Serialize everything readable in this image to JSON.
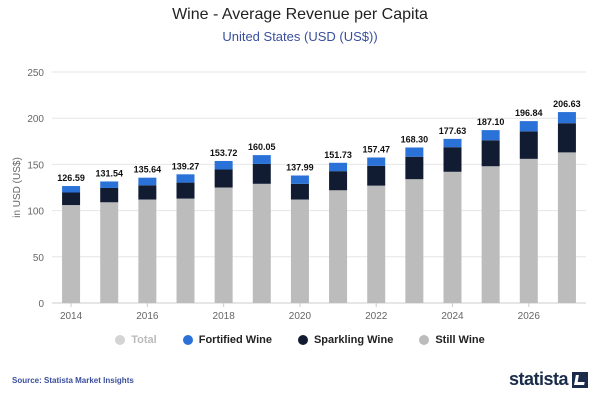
{
  "chart_data": {
    "type": "bar",
    "stacked": true,
    "title": "Wine - Average Revenue per Capita",
    "subtitle": "United States (USD (US$))",
    "ylabel": "in USD (US$)",
    "xlabel": "",
    "ylim": [
      0,
      250
    ],
    "yticks": [
      0,
      50,
      100,
      150,
      200,
      250
    ],
    "xtick_labels": [
      "2014",
      "2016",
      "2018",
      "2020",
      "2022",
      "2024",
      "2026"
    ],
    "categories": [
      "2014",
      "2015",
      "2016",
      "2017",
      "2018",
      "2019",
      "2020",
      "2021",
      "2022",
      "2023",
      "2024",
      "2025",
      "2026",
      "2027"
    ],
    "series": [
      {
        "name": "Still Wine",
        "color": "#bcbcbc",
        "values": [
          106,
          109,
          112,
          113,
          125,
          129,
          112,
          122,
          127,
          134,
          142,
          148,
          156,
          163
        ]
      },
      {
        "name": "Sparkling Wine",
        "color": "#111c33",
        "values": [
          13.6,
          15.5,
          15.4,
          17.3,
          19.5,
          21.5,
          17.0,
          20.7,
          21.5,
          24.3,
          26.6,
          28.1,
          29.8,
          31.6
        ]
      },
      {
        "name": "Fortified Wine",
        "color": "#2a72d8",
        "values": [
          6.99,
          7.04,
          8.24,
          8.97,
          9.22,
          9.55,
          8.99,
          9.03,
          8.97,
          10.0,
          9.03,
          11.0,
          11.04,
          12.03
        ]
      }
    ],
    "totals": [
      "126.59",
      "131.54",
      "135.64",
      "139.27",
      "153.72",
      "160.05",
      "137.99",
      "151.73",
      "157.47",
      "168.30",
      "177.63",
      "187.10",
      "196.84",
      "206.63"
    ],
    "legend": [
      {
        "name": "Total",
        "color": "#d4d4d4",
        "muted": true
      },
      {
        "name": "Fortified Wine",
        "color": "#2a72d8",
        "muted": false
      },
      {
        "name": "Sparkling Wine",
        "color": "#111c33",
        "muted": false
      },
      {
        "name": "Still Wine",
        "color": "#bcbcbc",
        "muted": false
      }
    ],
    "grid": true
  },
  "footer": {
    "source": "Source: Statista Market Insights",
    "logo": "statista"
  }
}
